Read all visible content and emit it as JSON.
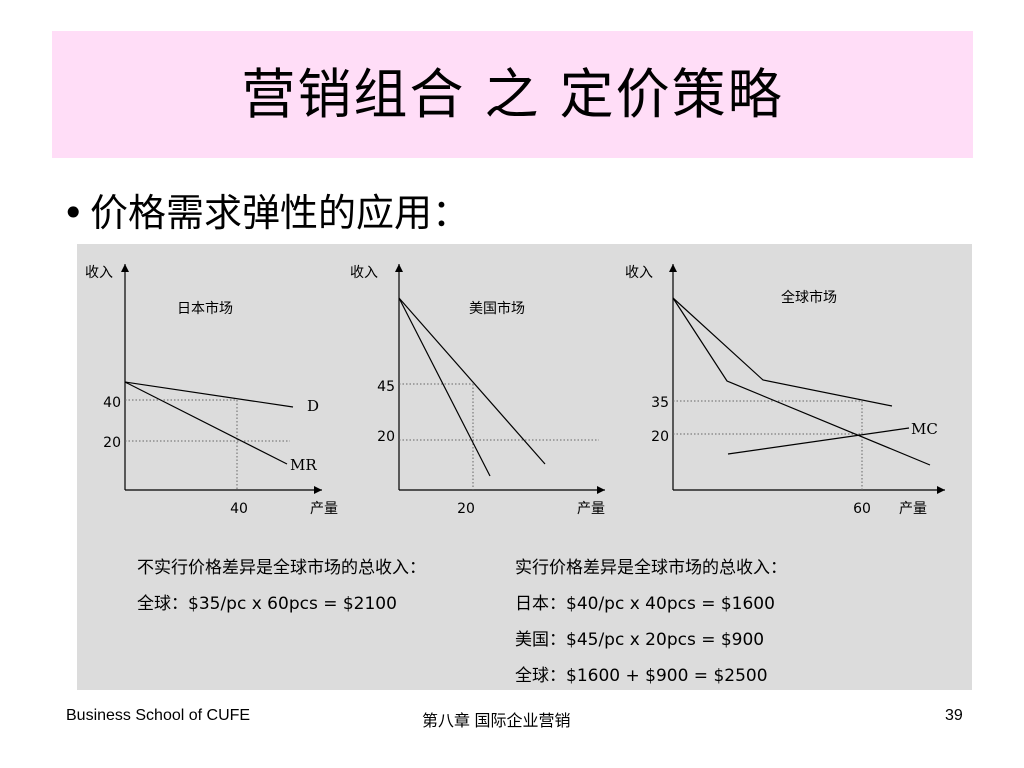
{
  "slide": {
    "title": "营销组合 之 定价策略",
    "bullet": "价格需求弹性的应用：",
    "footer_left": "Business School of CUFE",
    "footer_center": "第八章 国际企业营销",
    "footer_right": "39"
  },
  "charts": [
    {
      "title": "日本市场",
      "y_axis_label": "收入",
      "x_axis_label": "产量",
      "y_ticks": [
        "40",
        "20"
      ],
      "x_ticks": [
        "40"
      ],
      "line_labels": [
        "D",
        "MR"
      ]
    },
    {
      "title": "美国市场",
      "y_axis_label": "收入",
      "x_axis_label": "产量",
      "y_ticks": [
        "45",
        "20"
      ],
      "x_ticks": [
        "20"
      ],
      "line_labels": []
    },
    {
      "title": "全球市场",
      "y_axis_label": "收入",
      "x_axis_label": "产量",
      "y_ticks": [
        "35",
        "20"
      ],
      "x_ticks": [
        "60"
      ],
      "line_labels": [
        "MC"
      ]
    }
  ],
  "revenue": {
    "left_heading": "不实行价格差异是全球市场的总收入：",
    "left_lines": [
      "全球：$35/pc x 60pcs = $2100"
    ],
    "right_heading": "实行价格差异是全球市场的总收入：",
    "right_lines": [
      "日本：$40/pc x 40pcs = $1600",
      "美国：$45/pc x 20pcs = $900",
      "全球：$1600 + $900 = $2500"
    ]
  }
}
